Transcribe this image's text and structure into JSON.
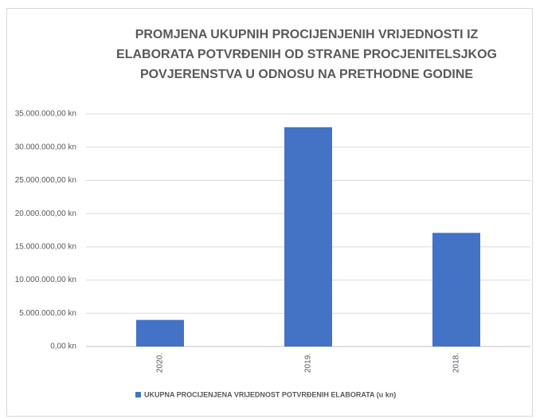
{
  "chart_data": {
    "type": "bar",
    "title": [
      "PROMJENA UKUPNIH PROCIJENJENIH VRIJEDNOSTI IZ",
      "ELABORATA POTVRĐENIH OD STRANE PROCJENITELSJKOG",
      "POVJERENSTVA U ODNOSU NA PRETHODNE GODINE"
    ],
    "categories": [
      "2020.",
      "2019.",
      "2018."
    ],
    "series": [
      {
        "name": "UKUPNA PROCIJENJENA VRIJEDNOST POTVRĐENIH ELABORATA (u kn)",
        "color": "#4472c4",
        "values": [
          4000000,
          33000000,
          17100000
        ]
      }
    ],
    "ylim": [
      0,
      35000000
    ],
    "yticks": [
      {
        "value": 0,
        "label": "0,00 kn"
      },
      {
        "value": 5000000,
        "label": "5.000.000,00 kn"
      },
      {
        "value": 10000000,
        "label": "10.000.000,00 kn"
      },
      {
        "value": 15000000,
        "label": "15.000.000,00 kn"
      },
      {
        "value": 20000000,
        "label": "20.000.000,00 kn"
      },
      {
        "value": 25000000,
        "label": "25.000.000,00 kn"
      },
      {
        "value": 30000000,
        "label": "30.000.000,00 kn"
      },
      {
        "value": 35000000,
        "label": "35.000.000,00 kn"
      }
    ],
    "grid": true,
    "legend": "bottom"
  }
}
